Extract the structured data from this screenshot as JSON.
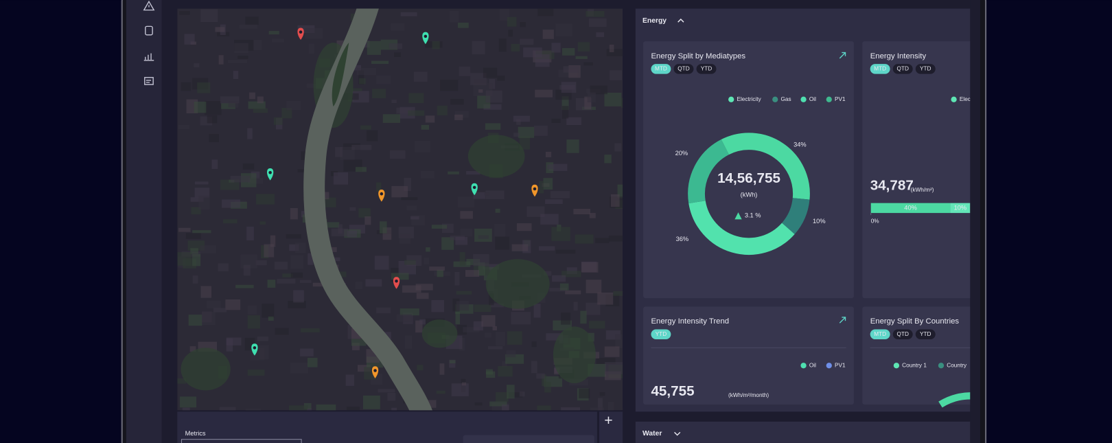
{
  "map": {
    "metrics_label": "Metrics"
  },
  "energy": {
    "title": "Energy",
    "cards": [
      {
        "title": "Energy Split by Mediatypes",
        "tabs": [
          "MTD",
          "QTD",
          "YTD"
        ],
        "chart_data": {
          "type": "pie",
          "legend": [
            {
              "name": "Electricity",
              "color": "#5ee6b4"
            },
            {
              "name": "Gas",
              "color": "#3a8f80"
            },
            {
              "name": "Oil",
              "color": "#4fe0b0"
            },
            {
              "name": "PV1",
              "color": "#3fb98f"
            }
          ],
          "values": [
            34,
            10,
            36,
            20
          ],
          "value_labels": [
            "34%",
            "10%",
            "36%",
            "20%"
          ],
          "colors": [
            "#4cd9a2",
            "#2f7f7a",
            "#52e2ad",
            "#3cb991"
          ],
          "center_value": "14,56,755",
          "center_unit": "(kWh)",
          "change": "3.1 %"
        }
      },
      {
        "title": "Energy Intensity",
        "tabs": [
          "MTD",
          "QTD",
          "YTD"
        ],
        "legend": [
          {
            "name": "Electricity",
            "color": "#5ee6b4"
          }
        ],
        "value": "34,787",
        "unit": "(kWh/m²)",
        "chart_data": {
          "type": "bar",
          "values": [
            40,
            10
          ],
          "value_labels": [
            "40%",
            "10%"
          ],
          "colors": [
            "#4cd9a2",
            "#63e6b8"
          ],
          "xlim": [
            0,
            100
          ],
          "xticks": [
            {
              "value": 0,
              "label": "0%"
            }
          ]
        }
      },
      {
        "title": "Energy Intensity Trend",
        "tabs": [
          "YTD"
        ],
        "legend": [
          {
            "name": "Oil",
            "color": "#4fe0b0"
          },
          {
            "name": "PV1",
            "color": "#6f8fe8"
          }
        ],
        "value": "45,755",
        "unit": "(kWh/m²/month)"
      },
      {
        "title": "Energy Split By Countries",
        "tabs": [
          "MTD",
          "QTD",
          "YTD"
        ],
        "legend": [
          {
            "name": "Country 1",
            "color": "#5ee6b4"
          },
          {
            "name": "Country",
            "color": "#3a8f80"
          }
        ]
      }
    ]
  },
  "water": {
    "title": "Water"
  }
}
